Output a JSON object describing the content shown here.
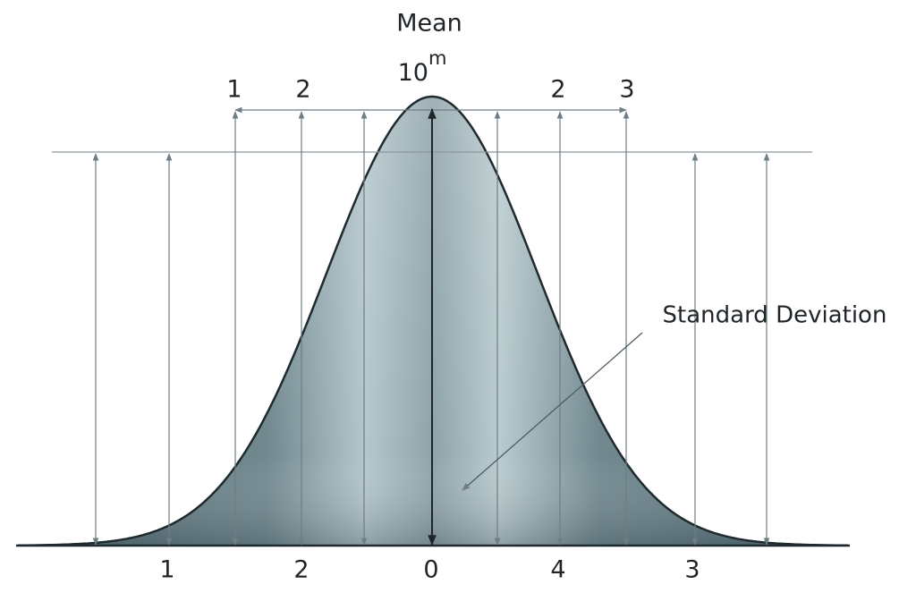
{
  "title": "Mean",
  "mean_label": {
    "base": "10",
    "exponent": "m"
  },
  "top_labels": [
    "1",
    "2",
    "2",
    "3"
  ],
  "bottom_labels": [
    "1",
    "2",
    "0",
    "4",
    "3"
  ],
  "annotation": "Standard Deviation"
}
